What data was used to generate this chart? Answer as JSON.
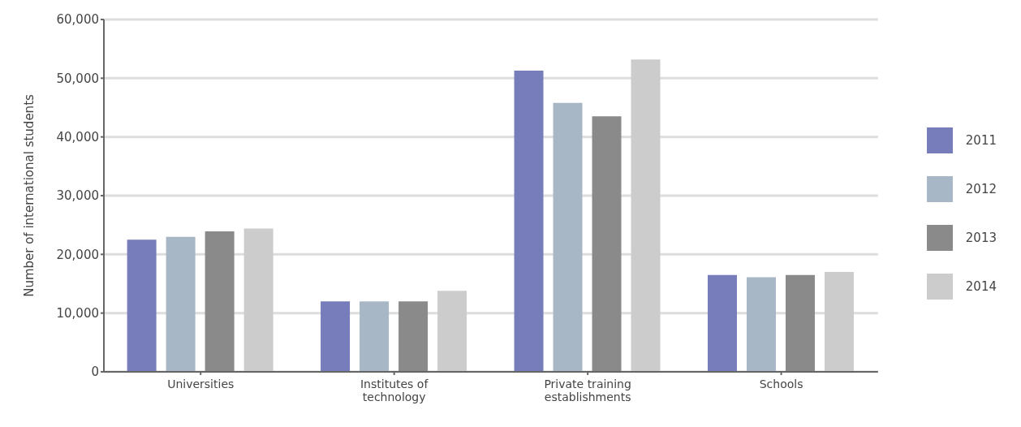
{
  "chart_data": {
    "type": "bar",
    "ylabel": "Number of international students",
    "categories": [
      "Universities",
      "Institutes of technology",
      "Private training establishments",
      "Schools"
    ],
    "series": [
      {
        "name": "2011",
        "color": "#767dba",
        "values": [
          22500,
          12000,
          51300,
          16500
        ]
      },
      {
        "name": "2012",
        "color": "#a8b7c6",
        "values": [
          23000,
          12000,
          45800,
          16100
        ]
      },
      {
        "name": "2013",
        "color": "#8a8a8a",
        "values": [
          23900,
          12000,
          43500,
          16500
        ]
      },
      {
        "name": "2014",
        "color": "#cccccc",
        "values": [
          24400,
          13800,
          53200,
          17000
        ]
      }
    ],
    "ylim": [
      0,
      60000
    ],
    "yticks": [
      0,
      {
        "value": 10000,
        "label": "10,000"
      },
      {
        "value": 20000,
        "label": "20,000"
      },
      {
        "value": 30000,
        "label": "30,000"
      },
      {
        "value": 40000,
        "label": "40,000"
      },
      {
        "value": 50000,
        "label": "50,000"
      },
      {
        "value": 60000,
        "label": "60,000"
      }
    ],
    "grid": "y",
    "legend": "right"
  }
}
